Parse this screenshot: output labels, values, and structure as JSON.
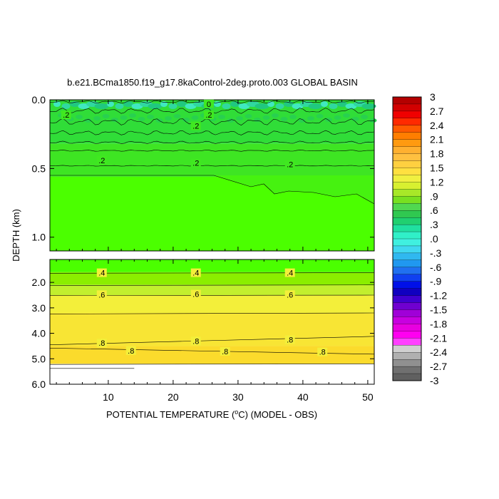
{
  "chart_data": {
    "type": "heatmap",
    "title": "b.e21.BCma1850.f19_g17.8kaControl-2deg.proto.003 GLOBAL BASIN",
    "xlabel_pre": "POTENTIAL TEMPERATURE (",
    "xlabel_unit": "C) (MODEL - OBS)",
    "xlabel_sup": "o",
    "ylabel": "DEPTH (km)",
    "xlim": [
      1,
      51
    ],
    "x_ticks": [
      10,
      20,
      30,
      40,
      50
    ],
    "upper_panel": {
      "ylim": [
        0.0,
        1.1
      ],
      "y_ticks": [
        {
          "v": 0.0,
          "label": "0.0"
        },
        {
          "v": 0.5,
          "label": "0.5"
        },
        {
          "v": 1.0,
          "label": "1.0"
        }
      ]
    },
    "lower_panel": {
      "ylim": [
        1.1,
        6.0
      ],
      "y_ticks": [
        {
          "v": 2.0,
          "label": "2.0"
        },
        {
          "v": 3.0,
          "label": "3.0"
        },
        {
          "v": 4.0,
          "label": "4.0"
        },
        {
          "v": 5.0,
          "label": "5.0"
        },
        {
          "v": 6.0,
          "label": "6.0"
        }
      ]
    },
    "colorbar": {
      "levels": [
        "3",
        "2.7",
        "2.4",
        "2.1",
        "1.8",
        "1.5",
        "1.2",
        ".9",
        ".6",
        ".3",
        ".0",
        "-.3",
        "-.6",
        "-.9",
        "-1.2",
        "-1.5",
        "-1.8",
        "-2.1",
        "-2.4",
        "-2.7",
        "-3"
      ],
      "colors": [
        "#b40000",
        "#d20000",
        "#f00000",
        "#ff2a00",
        "#ff5a00",
        "#ff7e00",
        "#ff9a10",
        "#ffb030",
        "#ffc040",
        "#ffd040",
        "#ffe040",
        "#f0f040",
        "#d8f030",
        "#a8e828",
        "#78e020",
        "#50d850",
        "#30c850",
        "#20d070",
        "#20e0a0",
        "#30f0c8",
        "#40f0e0",
        "#40d8f0",
        "#30b8f0",
        "#2098f0",
        "#2070f0",
        "#1040f0",
        "#0010e8",
        "#1000c0",
        "#4000d0",
        "#7000d0",
        "#a000d8",
        "#c800e0",
        "#e800e0",
        "#ff00f0",
        "#ff40ff",
        "#d0d0d0",
        "#b0b0b0",
        "#909090",
        "#707070",
        "#606060"
      ]
    },
    "regions": [
      {
        "panel": "upper",
        "depth": [
          0.0,
          0.32
        ],
        "value": 0.1,
        "color": "#30dd38"
      },
      {
        "panel": "upper",
        "depth": [
          0.32,
          0.56
        ],
        "value": 0.2,
        "color": "#3ee523"
      },
      {
        "panel": "upper",
        "depth": [
          0.56,
          1.1
        ],
        "value": 0.3,
        "color": "#4bff00"
      },
      {
        "panel": "lower",
        "depth": [
          1.1,
          1.6
        ],
        "value": 0.3,
        "color": "#4bff00"
      },
      {
        "panel": "lower",
        "depth": [
          1.6,
          2.1
        ],
        "value": 0.4,
        "color": "#8bee00"
      },
      {
        "panel": "lower",
        "depth": [
          2.1,
          2.5
        ],
        "value": 0.55,
        "color": "#c2ef2e"
      },
      {
        "panel": "lower",
        "depth": [
          2.5,
          3.2
        ],
        "value": 0.65,
        "color": "#f3ef3a"
      },
      {
        "panel": "lower",
        "depth": [
          3.2,
          4.5
        ],
        "value": 0.75,
        "color": "#f8e534"
      },
      {
        "panel": "lower",
        "depth": [
          4.5,
          5.2
        ],
        "value": 0.85,
        "color": "#fbdb2c"
      },
      {
        "panel": "lower",
        "depth": [
          5.2,
          6.0
        ],
        "value": null,
        "color": "#ffffff"
      }
    ],
    "contour_labels": [
      {
        "text": "0",
        "x": 25.5,
        "depth": 0.03,
        "panel": "upper"
      },
      {
        "text": ".2",
        "x": 3.5,
        "depth": 0.11,
        "panel": "upper"
      },
      {
        "text": ".2",
        "x": 25.5,
        "depth": 0.11,
        "panel": "upper"
      },
      {
        "text": ".2",
        "x": 23.5,
        "depth": 0.19,
        "panel": "upper"
      },
      {
        "text": ".2",
        "x": 9,
        "depth": 0.44,
        "panel": "upper"
      },
      {
        "text": ".2",
        "x": 23.5,
        "depth": 0.46,
        "panel": "upper"
      },
      {
        "text": ".2",
        "x": 38,
        "depth": 0.47,
        "panel": "upper"
      },
      {
        "text": ".4",
        "x": 9,
        "depth": 1.62,
        "panel": "lower"
      },
      {
        "text": ".4",
        "x": 23.5,
        "depth": 1.62,
        "panel": "lower"
      },
      {
        "text": ".4",
        "x": 38,
        "depth": 1.62,
        "panel": "lower"
      },
      {
        "text": ".6",
        "x": 9,
        "depth": 2.48,
        "panel": "lower"
      },
      {
        "text": ".6",
        "x": 23.5,
        "depth": 2.46,
        "panel": "lower"
      },
      {
        "text": ".6",
        "x": 38,
        "depth": 2.48,
        "panel": "lower"
      },
      {
        "text": ".8",
        "x": 9,
        "depth": 4.38,
        "panel": "lower"
      },
      {
        "text": ".8",
        "x": 23.5,
        "depth": 4.3,
        "panel": "lower"
      },
      {
        "text": ".8",
        "x": 38,
        "depth": 4.25,
        "panel": "lower"
      },
      {
        "text": ".8",
        "x": 13.5,
        "depth": 4.68,
        "panel": "lower"
      },
      {
        "text": ".8",
        "x": 28,
        "depth": 4.71,
        "panel": "lower"
      },
      {
        "text": ".8",
        "x": 43,
        "depth": 4.73,
        "panel": "lower"
      }
    ]
  }
}
